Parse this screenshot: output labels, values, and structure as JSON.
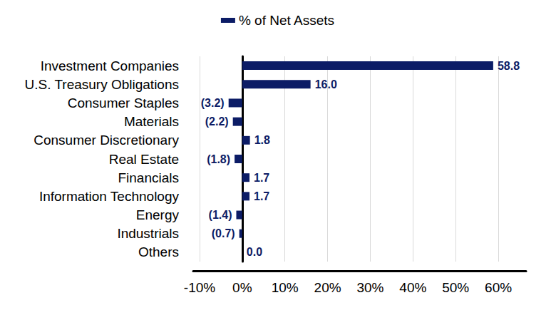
{
  "chart_data": {
    "type": "bar",
    "orientation": "horizontal",
    "categories": [
      "Investment Companies",
      "U.S. Treasury Obligations",
      "Consumer Staples",
      "Materials",
      "Consumer Discretionary",
      "Real Estate",
      "Financials",
      "Information Technology",
      "Energy",
      "Industrials",
      "Others"
    ],
    "series": [
      {
        "name": "% of Net Assets",
        "color": "#0c1c66",
        "values": [
          58.8,
          16.0,
          -3.2,
          -2.2,
          1.8,
          -1.8,
          1.7,
          1.7,
          -1.4,
          -0.7,
          0.0
        ],
        "value_labels": [
          "58.8",
          "16.0",
          "(3.2)",
          "(2.2)",
          "1.8",
          "(1.8)",
          "1.7",
          "1.7",
          "(1.4)",
          "(0.7)",
          "0.0"
        ]
      }
    ],
    "xlim": [
      -11.5,
      66.5
    ],
    "xticks": [
      {
        "value": -10,
        "label": "-10%"
      },
      {
        "value": 0,
        "label": "0%"
      },
      {
        "value": 10,
        "label": "10%"
      },
      {
        "value": 20,
        "label": "20%"
      },
      {
        "value": 30,
        "label": "30%"
      },
      {
        "value": 40,
        "label": "40%"
      },
      {
        "value": 50,
        "label": "50%"
      },
      {
        "value": 60,
        "label": "60%"
      }
    ],
    "grid": true,
    "legend": "top",
    "data_labels": true
  }
}
